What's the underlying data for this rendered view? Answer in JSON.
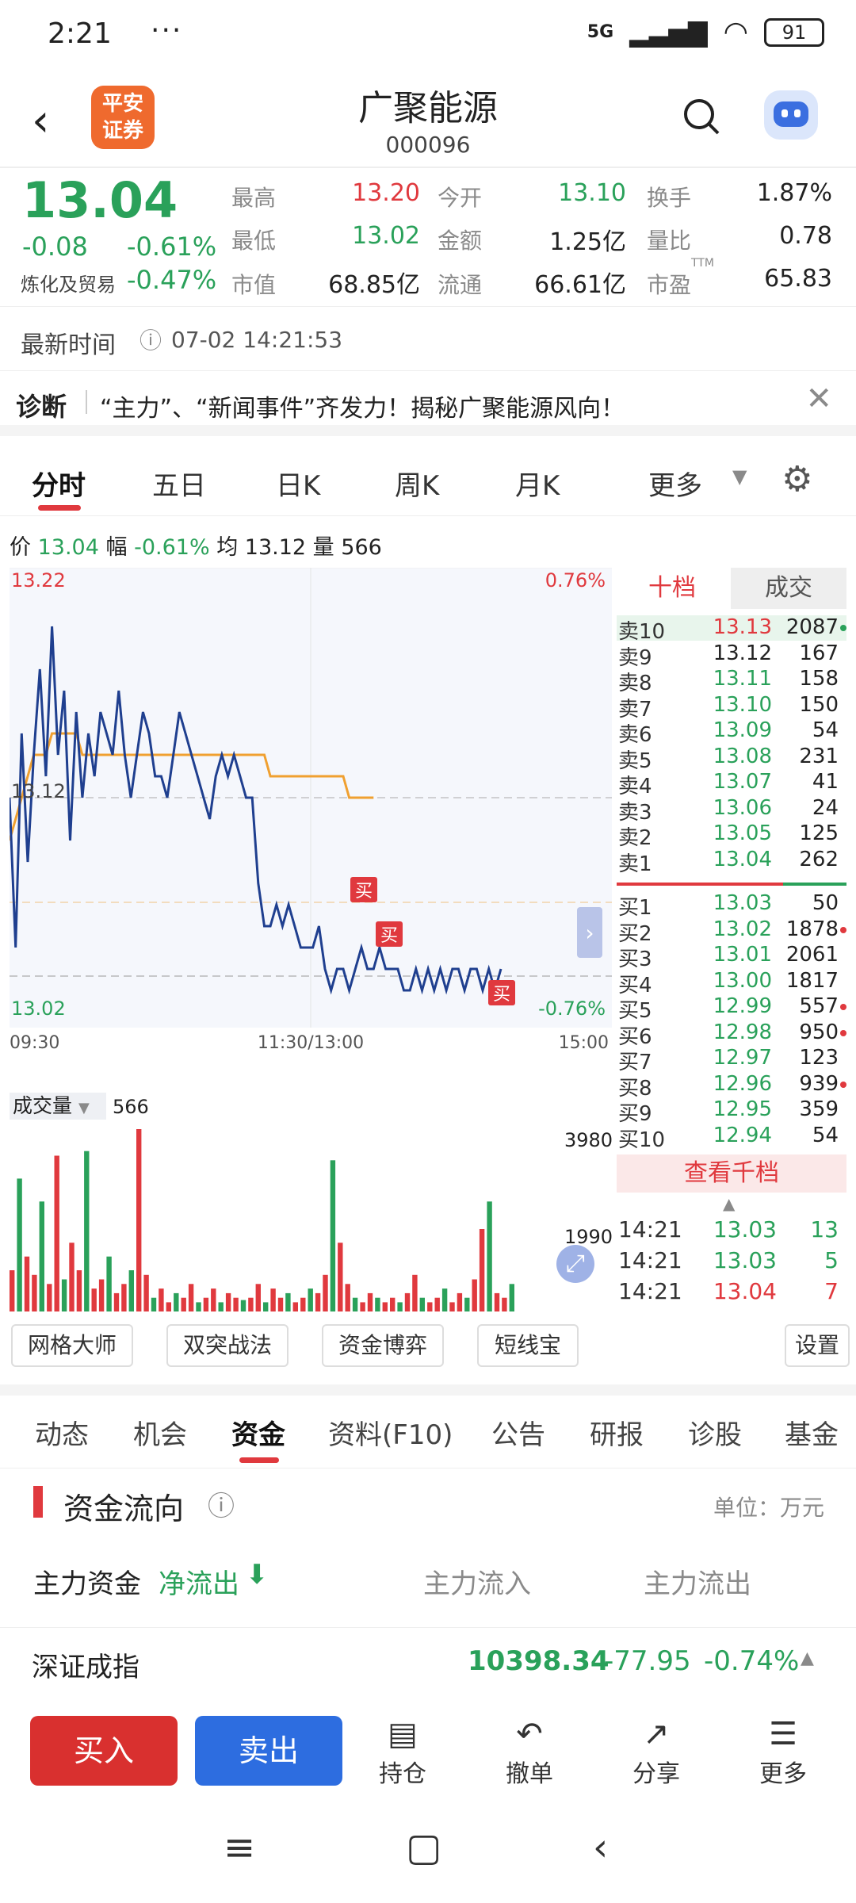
{
  "status": {
    "time": "2:21",
    "dots": "···",
    "network": "5G",
    "battery": "91"
  },
  "header": {
    "back": "‹",
    "logo_line1": "平安",
    "logo_line2": "证券",
    "stock_name": "广聚能源",
    "stock_code": "000096"
  },
  "quote": {
    "price": "13.04",
    "change": "-0.08",
    "change_pct": "-0.61%",
    "sector": "炼化及贸易",
    "sector_pct": "-0.47%",
    "high_label": "最高",
    "high": "13.20",
    "open_label": "今开",
    "open": "13.10",
    "turnover_label": "换手",
    "turnover": "1.87%",
    "low_label": "最低",
    "low": "13.02",
    "amount_label": "金额",
    "amount": "1.25亿",
    "vol_ratio_label": "量比",
    "vol_ratio": "0.78",
    "mktcap_label": "市值",
    "mktcap": "68.85亿",
    "float_label": "流通",
    "float": "66.61亿",
    "pe_label": "市盈",
    "pe_sup": "TTM",
    "pe": "65.83"
  },
  "latest": {
    "label": "最新时间",
    "value": "07-02 14:21:53"
  },
  "diagnosis": {
    "label": "诊断",
    "text": "“主力”、“新闻事件”齐发力！揭秘广聚能源风向！"
  },
  "chart_tabs": [
    "分时",
    "五日",
    "日K",
    "周K",
    "月K",
    "更多"
  ],
  "chart_info": {
    "price_label": "价",
    "price": "13.04",
    "pct_label": "幅",
    "pct": "-0.61%",
    "avg_label": "均",
    "avg": "13.12",
    "vol_label": "量",
    "vol": "566"
  },
  "chart_labels": {
    "top_price": "13.22",
    "top_pct": "0.76%",
    "mid_price": "13.12",
    "bot_price": "13.02",
    "bot_pct": "-0.76%",
    "t_start": "09:30",
    "t_mid": "11:30/13:00",
    "t_end": "15:00",
    "buy_mark": "买"
  },
  "volume_labels": {
    "title": "成交量",
    "value": "566",
    "max": "3980",
    "mid": "1990"
  },
  "order_book": {
    "tab_ten": "十档",
    "tab_trades": "成交",
    "asks": [
      {
        "label": "卖10",
        "price": "13.13",
        "vol": "2087",
        "dot": "green"
      },
      {
        "label": "卖9",
        "price": "13.12",
        "vol": "167",
        "dot": ""
      },
      {
        "label": "卖8",
        "price": "13.11",
        "vol": "158",
        "dot": ""
      },
      {
        "label": "卖7",
        "price": "13.10",
        "vol": "150",
        "dot": ""
      },
      {
        "label": "卖6",
        "price": "13.09",
        "vol": "54",
        "dot": ""
      },
      {
        "label": "卖5",
        "price": "13.08",
        "vol": "231",
        "dot": ""
      },
      {
        "label": "卖4",
        "price": "13.07",
        "vol": "41",
        "dot": ""
      },
      {
        "label": "卖3",
        "price": "13.06",
        "vol": "24",
        "dot": ""
      },
      {
        "label": "卖2",
        "price": "13.05",
        "vol": "125",
        "dot": ""
      },
      {
        "label": "卖1",
        "price": "13.04",
        "vol": "262",
        "dot": ""
      }
    ],
    "bids": [
      {
        "label": "买1",
        "price": "13.03",
        "vol": "50",
        "dot": ""
      },
      {
        "label": "买2",
        "price": "13.02",
        "vol": "1878",
        "dot": "red"
      },
      {
        "label": "买3",
        "price": "13.01",
        "vol": "2061",
        "dot": ""
      },
      {
        "label": "买4",
        "price": "13.00",
        "vol": "1817",
        "dot": ""
      },
      {
        "label": "买5",
        "price": "12.99",
        "vol": "557",
        "dot": "red"
      },
      {
        "label": "买6",
        "price": "12.98",
        "vol": "950",
        "dot": "red"
      },
      {
        "label": "买7",
        "price": "12.97",
        "vol": "123",
        "dot": ""
      },
      {
        "label": "买8",
        "price": "12.96",
        "vol": "939",
        "dot": "red"
      },
      {
        "label": "买9",
        "price": "12.95",
        "vol": "359",
        "dot": ""
      },
      {
        "label": "买10",
        "price": "12.94",
        "vol": "54",
        "dot": ""
      }
    ],
    "more": "查看千档",
    "trades": [
      {
        "time": "14:21",
        "price": "13.03",
        "vol": "13",
        "color": "green"
      },
      {
        "time": "14:21",
        "price": "13.03",
        "vol": "5",
        "color": "green"
      },
      {
        "time": "14:21",
        "price": "13.04",
        "vol": "7",
        "color": "red"
      }
    ]
  },
  "tools": [
    "网格大师",
    "双突战法",
    "资金博弈",
    "短线宝",
    "设置"
  ],
  "info_tabs": [
    "动态",
    "机会",
    "资金",
    "资料(F10)",
    "公告",
    "研报",
    "诊股",
    "基金"
  ],
  "flow": {
    "title": "资金流向",
    "unit": "单位：万元",
    "main_label": "主力资金",
    "net": "净流出",
    "inflow": "主力流入",
    "outflow": "主力流出"
  },
  "index": {
    "name": "深证成指",
    "value": "10398.34",
    "change": "-77.95",
    "pct": "-0.74%"
  },
  "bottom": {
    "buy": "买入",
    "sell": "卖出",
    "hold": "持仓",
    "cancel": "撤单",
    "share": "分享",
    "more": "更多"
  },
  "colors": {
    "up": "#e0393e",
    "down": "#2aa15a",
    "line": "#1f3f8f",
    "avg": "#f0a030",
    "sell_btn": "#2d6de0"
  },
  "chart_data": {
    "type": "line",
    "ylim": [
      13.02,
      13.22
    ],
    "series": [
      {
        "values": [
          13.12,
          13.05,
          13.15,
          13.09,
          13.14,
          13.18,
          13.13,
          13.2,
          13.14,
          13.17,
          13.1,
          13.16,
          13.12,
          13.15,
          13.13,
          13.16,
          13.15,
          13.14,
          13.17,
          13.14,
          13.12,
          13.14,
          13.16,
          13.15,
          13.13,
          13.13,
          13.12,
          13.14,
          13.16,
          13.15,
          13.14,
          13.13,
          13.12,
          13.11,
          13.13,
          13.14,
          13.13,
          13.14,
          13.13,
          13.12,
          13.12,
          13.08,
          13.06,
          13.06,
          13.07,
          13.06,
          13.07,
          13.06,
          13.05,
          13.05,
          13.05,
          13.06,
          13.04,
          13.03,
          13.04,
          13.04,
          13.03,
          13.04,
          13.05,
          13.04,
          13.04,
          13.05,
          13.04,
          13.04,
          13.04,
          13.03,
          13.03,
          13.04,
          13.03,
          13.04,
          13.03,
          13.04,
          13.03,
          13.04,
          13.04,
          13.03,
          13.04,
          13.04,
          13.03,
          13.04,
          13.03,
          13.04
        ]
      },
      {
        "values": [
          13.1,
          13.11,
          13.12,
          13.13,
          13.14,
          13.14,
          13.14,
          13.15,
          13.15,
          13.15,
          13.15,
          13.15,
          13.14,
          13.14,
          13.14,
          13.14,
          13.14,
          13.14,
          13.14,
          13.14,
          13.14,
          13.14,
          13.14,
          13.14,
          13.14,
          13.14,
          13.14,
          13.14,
          13.14,
          13.14,
          13.14,
          13.14,
          13.14,
          13.14,
          13.14,
          13.14,
          13.14,
          13.14,
          13.14,
          13.14,
          13.14,
          13.14,
          13.14,
          13.13,
          13.13,
          13.13,
          13.13,
          13.13,
          13.13,
          13.13,
          13.13,
          13.13,
          13.13,
          13.13,
          13.13,
          13.13,
          13.12,
          13.12,
          13.12,
          13.12,
          13.12
        ]
      }
    ],
    "volume": [
      900,
      2900,
      1200,
      800,
      2400,
      600,
      3400,
      700,
      1500,
      900,
      3500,
      500,
      700,
      1200,
      400,
      600,
      900,
      3980,
      800,
      300,
      500,
      200,
      400,
      300,
      600,
      200,
      300,
      500,
      200,
      400,
      300,
      250,
      300,
      600,
      200,
      500,
      300,
      400,
      200,
      300,
      500,
      400,
      800,
      3300,
      1500,
      600,
      300,
      200,
      400,
      300,
      200,
      300,
      200,
      400,
      800,
      300,
      200,
      300,
      500,
      200,
      400,
      300,
      700,
      1800,
      2400,
      400,
      300,
      600
    ]
  }
}
